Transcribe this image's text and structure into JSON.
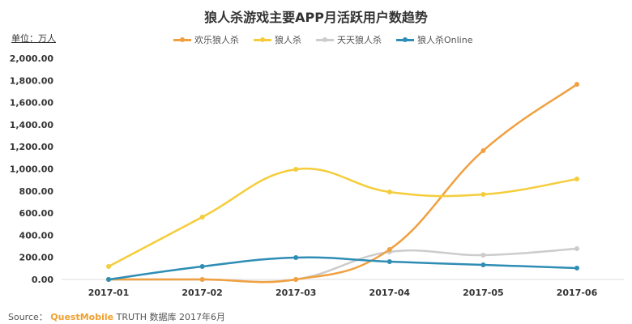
{
  "chart_data": {
    "type": "line",
    "title": "狼人杀游戏主要APP月活跃用户数趋势",
    "unit_label": "单位：万人",
    "categories": [
      "2017-01",
      "2017-02",
      "2017-03",
      "2017-04",
      "2017-05",
      "2017-06"
    ],
    "ylim": [
      0,
      2000
    ],
    "yticks": [
      "0.00",
      "200.00",
      "400.00",
      "600.00",
      "800.00",
      "1,000.00",
      "1,200.00",
      "1,400.00",
      "1,600.00",
      "1,800.00",
      "2,000.00"
    ],
    "grid": false,
    "legend_position": "top",
    "series": [
      {
        "name": "欢乐狼人杀",
        "color": "#f0a040",
        "values": [
          0,
          0,
          0,
          271,
          1165,
          1765
        ]
      },
      {
        "name": "狼人杀",
        "color": "#f5cd3a",
        "values": [
          117,
          564,
          996,
          791,
          769,
          908
        ]
      },
      {
        "name": "天天狼人杀",
        "color": "#cccccc",
        "values": [
          0,
          0,
          0,
          249,
          220,
          278
        ]
      },
      {
        "name": "狼人杀Online",
        "color": "#2e8db5",
        "values": [
          0,
          117,
          198,
          161,
          132,
          103
        ]
      }
    ]
  },
  "source": {
    "prefix": "Source：",
    "brand": "QuestMobile",
    "suffix": "TRUTH 数据库 2017年6月"
  }
}
